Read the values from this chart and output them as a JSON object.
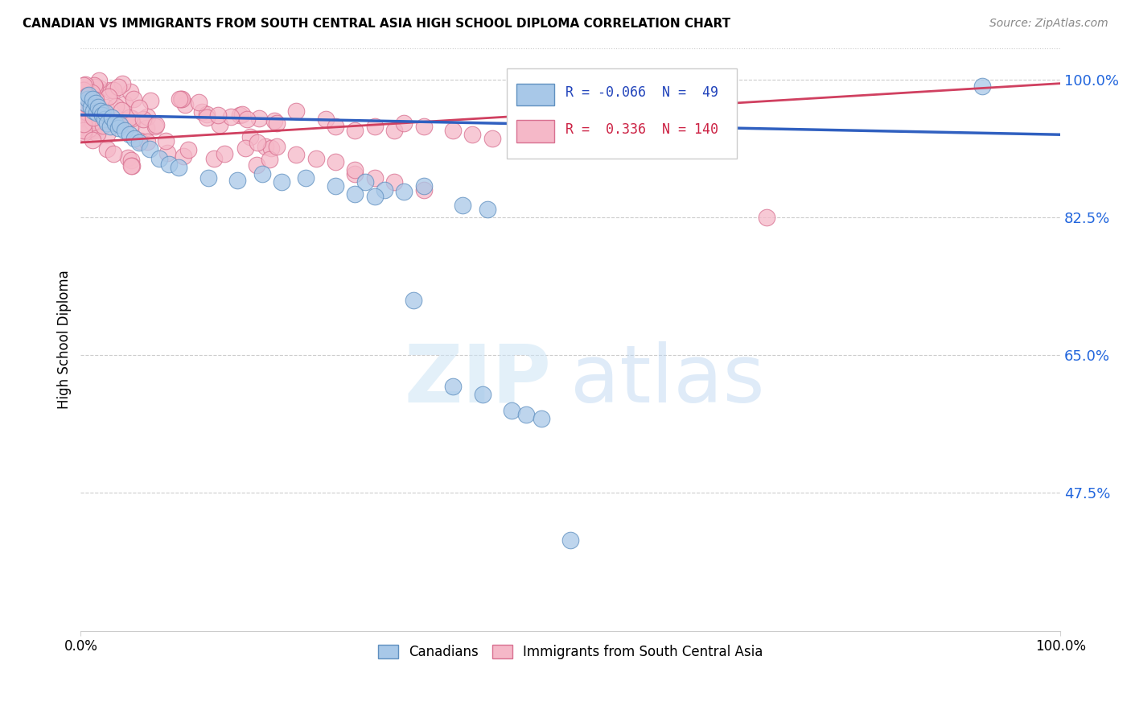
{
  "title": "CANADIAN VS IMMIGRANTS FROM SOUTH CENTRAL ASIA HIGH SCHOOL DIPLOMA CORRELATION CHART",
  "source": "Source: ZipAtlas.com",
  "ylabel": "High School Diploma",
  "xlim": [
    0,
    1
  ],
  "ylim": [
    0.3,
    1.04
  ],
  "yticks": [
    0.475,
    0.65,
    0.825,
    1.0
  ],
  "ytick_labels": [
    "47.5%",
    "65.0%",
    "82.5%",
    "100.0%"
  ],
  "xticks": [
    0.0,
    1.0
  ],
  "xtick_labels": [
    "0.0%",
    "100.0%"
  ],
  "canadian_color": "#a8c8e8",
  "immigrant_color": "#f5b8c8",
  "canadian_edge": "#6090c0",
  "immigrant_edge": "#d87090",
  "trend_canadian_color": "#3060c0",
  "trend_immigrant_color": "#d04060",
  "R_canadian": -0.066,
  "N_canadian": 49,
  "R_immigrant": 0.336,
  "N_immigrant": 140,
  "legend_label_canadian": "Canadians",
  "legend_label_immigrant": "Immigrants from South Central Asia",
  "watermark_zip": "ZIP",
  "watermark_atlas": "atlas",
  "can_trend_x0": 0.0,
  "can_trend_y0": 0.955,
  "can_trend_x1": 1.0,
  "can_trend_y1": 0.93,
  "imm_trend_x0": 0.0,
  "imm_trend_y0": 0.92,
  "imm_trend_x1": 1.0,
  "imm_trend_y1": 0.995
}
